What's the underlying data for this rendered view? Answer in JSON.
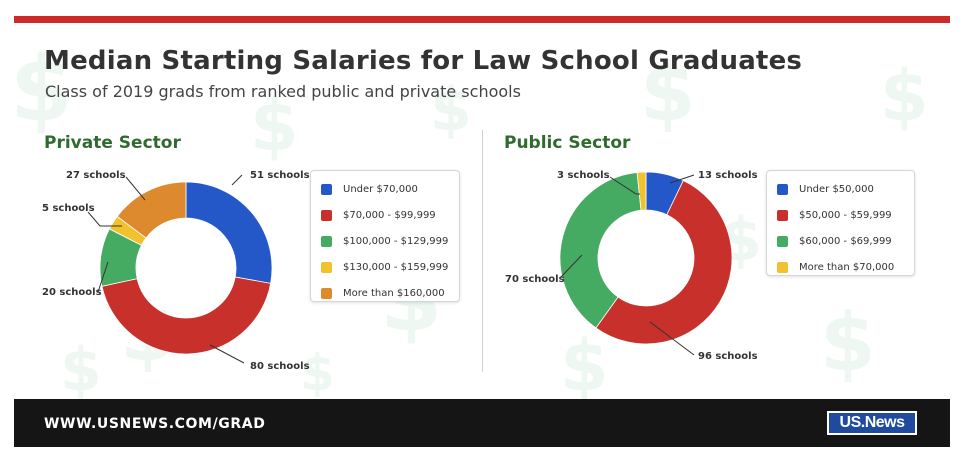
{
  "header": {
    "title": "Median Starting Salaries for Law School Graduates",
    "subtitle": "Class of 2019 grads from ranked public and private schools"
  },
  "colors": {
    "accent_bar": "#cf2a2a",
    "section_title": "#2f6b2f",
    "footer_bg": "#151515",
    "blue": "#2458c9",
    "red": "#c8302c",
    "green": "#46ab62",
    "yellow": "#f2c12e",
    "orange": "#dd8a2e"
  },
  "footer": {
    "url": "WWW.USNEWS.COM/GRAD",
    "logo_text": "US.News"
  },
  "chart_data": [
    {
      "type": "pie",
      "donut": true,
      "title": "Private Sector",
      "unit": "schools",
      "slices": [
        {
          "label": "Under $70,000",
          "value": 51,
          "callout": "51 schools",
          "color": "#2458c9"
        },
        {
          "label": "$70,000 - $99,999",
          "value": 80,
          "callout": "80 schools",
          "color": "#c8302c"
        },
        {
          "label": "$100,000 - $129,999",
          "value": 20,
          "callout": "20 schools",
          "color": "#46ab62"
        },
        {
          "label": "$130,000 - $159,999",
          "value": 5,
          "callout": "5 schools",
          "color": "#f2c12e"
        },
        {
          "label": "More than $160,000",
          "value": 27,
          "callout": "27 schools",
          "color": "#dd8a2e"
        }
      ],
      "legend_placement": "right"
    },
    {
      "type": "pie",
      "donut": true,
      "title": "Public Sector",
      "unit": "schools",
      "slices": [
        {
          "label": "Under $50,000",
          "value": 13,
          "callout": "13 schools",
          "color": "#2458c9"
        },
        {
          "label": "$50,000 - $59,999",
          "value": 96,
          "callout": "96 schools",
          "color": "#c8302c"
        },
        {
          "label": "$60,000 - $69,999",
          "value": 70,
          "callout": "70 schools",
          "color": "#46ab62"
        },
        {
          "label": "More than $70,000",
          "value": 3,
          "callout": "3 schools",
          "color": "#f2c12e"
        }
      ],
      "legend_placement": "right"
    }
  ]
}
